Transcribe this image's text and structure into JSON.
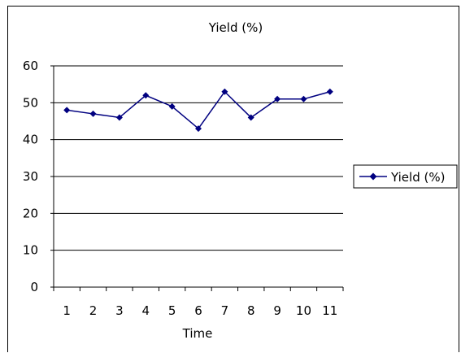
{
  "chart_data": {
    "type": "line",
    "title": "Yield (%)",
    "xlabel": "Time",
    "ylabel": "",
    "categories": [
      "1",
      "2",
      "3",
      "4",
      "5",
      "6",
      "7",
      "8",
      "9",
      "10",
      "11"
    ],
    "series": [
      {
        "name": "Yield (%)",
        "values": [
          48,
          47,
          46,
          52,
          49,
          43,
          53,
          46,
          51,
          51,
          53
        ],
        "color": "#000080",
        "marker": "diamond"
      }
    ],
    "ylim": [
      0,
      60
    ],
    "yticks": [
      "0",
      "10",
      "20",
      "30",
      "40",
      "50",
      "60"
    ],
    "grid": true,
    "legend": "right"
  }
}
